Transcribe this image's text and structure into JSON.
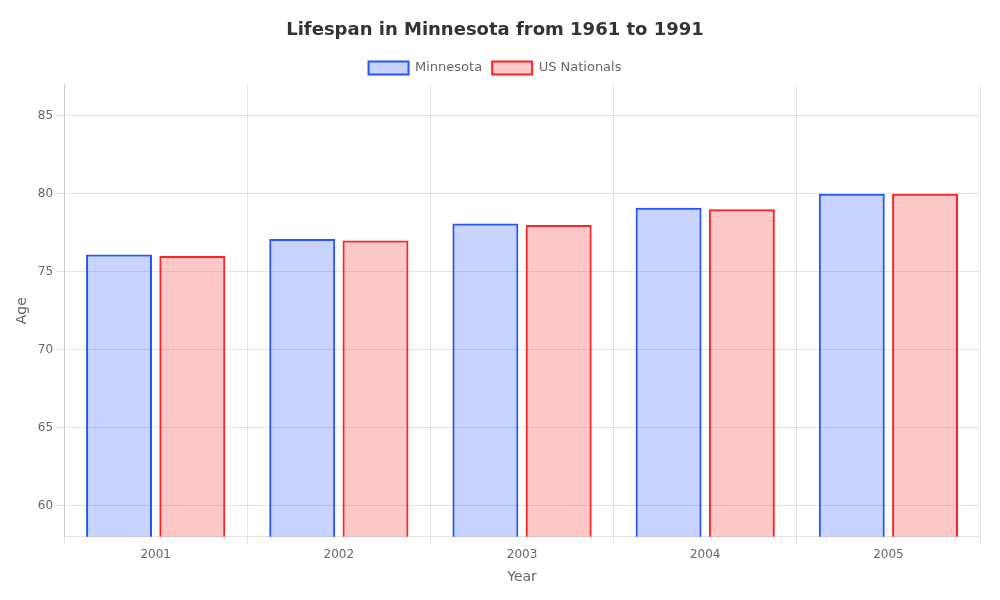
{
  "chart_data": {
    "type": "bar",
    "title": "Lifespan in Minnesota from 1961 to 1991",
    "x_label": "Year",
    "y_label": "Age",
    "categories": [
      "2001",
      "2002",
      "2003",
      "2004",
      "2005"
    ],
    "series": [
      {
        "name": "Minnesota",
        "color": "#2255ff",
        "values": [
          76.1,
          77.1,
          78.1,
          79.1,
          80.0
        ]
      },
      {
        "name": "US Nationals",
        "color": "#ff2222",
        "values": [
          76.0,
          77.0,
          78.0,
          79.0,
          80.0
        ]
      }
    ],
    "ylim": [
      58,
      87
    ],
    "yticks": [
      60,
      65,
      70,
      75,
      80,
      85
    ],
    "grid": true,
    "legend": "top"
  }
}
